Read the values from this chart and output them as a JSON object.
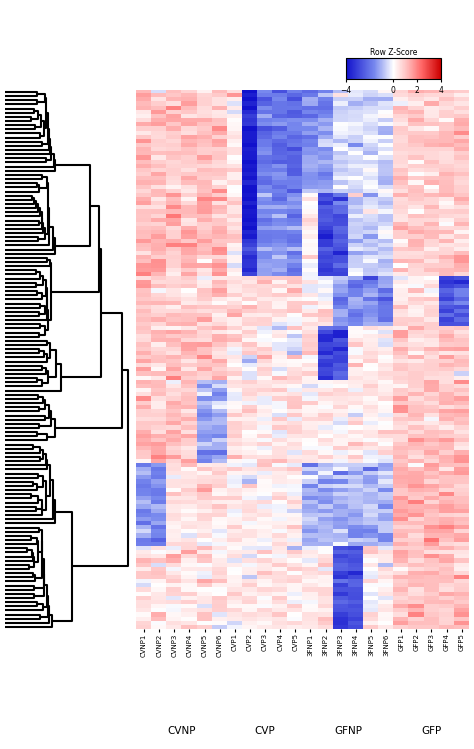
{
  "columns": [
    "CVNP1",
    "CVNP2",
    "CVNP3",
    "CVNP4",
    "CVNP5",
    "CVNP6",
    "CVP1",
    "CVP2",
    "CVP3",
    "CVP4",
    "CVP5",
    "3FNP1",
    "3FNP2",
    "3FNP3",
    "3FNP4",
    "3FNP5",
    "3FNP6",
    "GFP1",
    "GFP2",
    "GFP3",
    "GFP4",
    "GFP5"
  ],
  "group_labels": [
    "CVNP",
    "CVP",
    "GFNP",
    "GFP"
  ],
  "group_centers": [
    2.5,
    8.0,
    13.5,
    19.0
  ],
  "n_rows": 130,
  "colorbar_label": "Row Z-Score",
  "colorbar_ticks": [
    -4,
    0,
    2,
    4
  ],
  "vmin": -4,
  "vmax": 4,
  "seed": 12345
}
